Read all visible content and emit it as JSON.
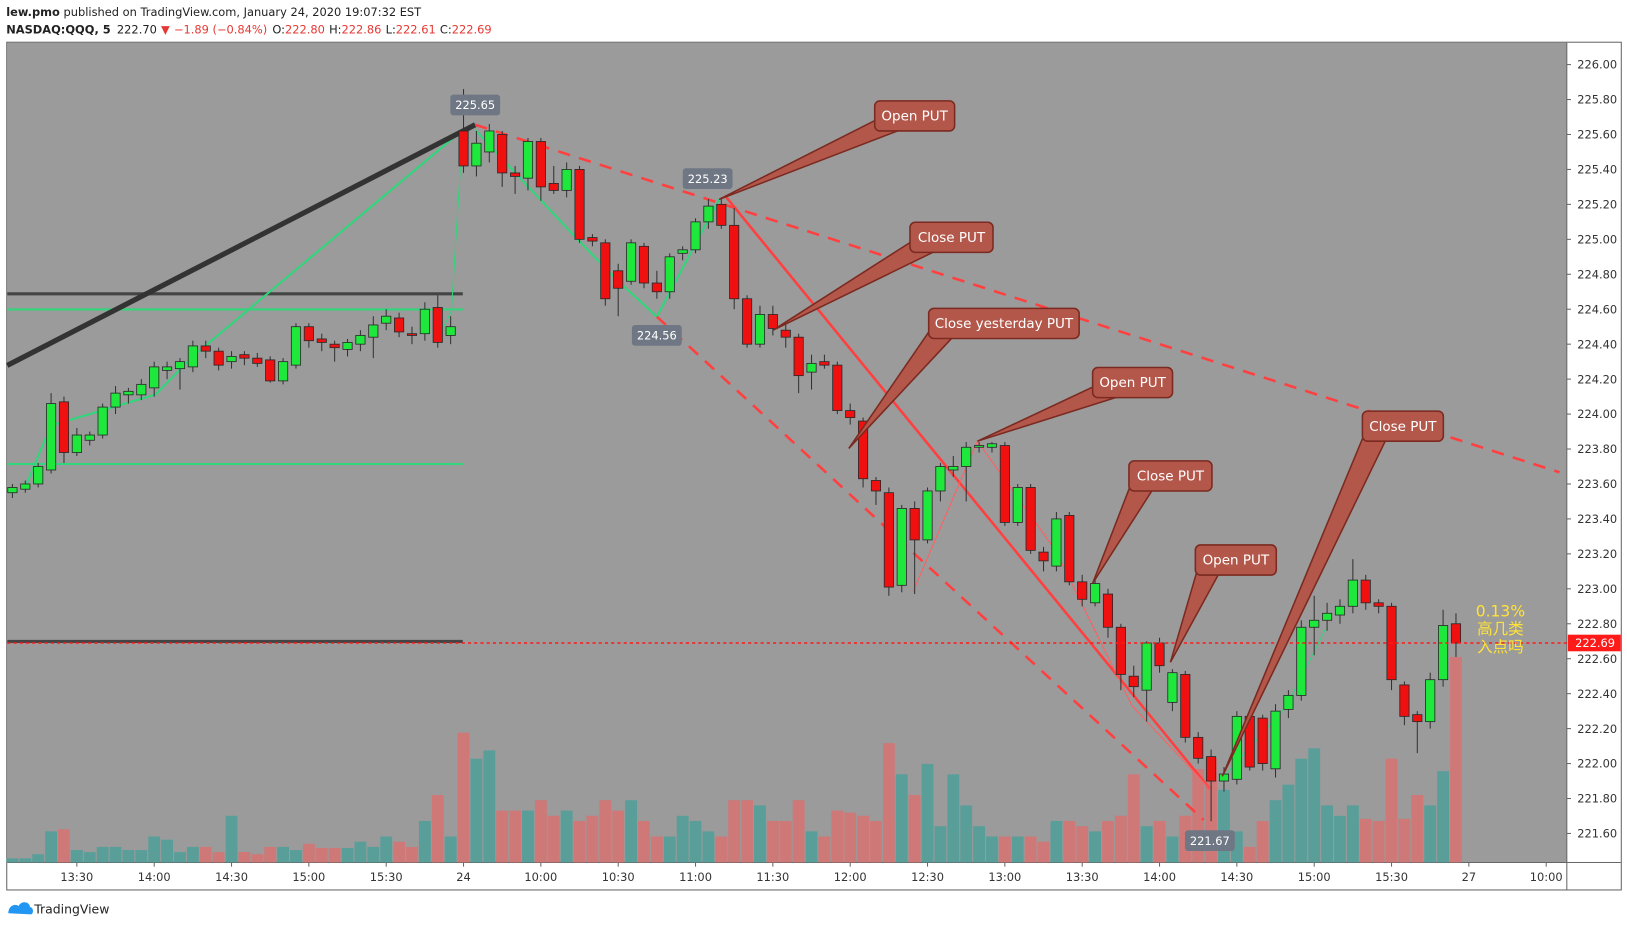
{
  "header": {
    "author": "lew.pmo",
    "published": "published on TradingView.com, January 24, 2020 19:07:32 EST",
    "symbol": "NASDAQ:QQQ, 5",
    "price": "222.70",
    "arrow": "▼",
    "change": "−1.89 (−0.84%)",
    "ohlc": [
      {
        "key": "O:",
        "value": "222.80"
      },
      {
        "key": "H:",
        "value": "222.86"
      },
      {
        "key": "L:",
        "value": "222.61"
      },
      {
        "key": "C:",
        "value": "222.69"
      }
    ]
  },
  "chart_data": {
    "type": "candlestick",
    "open": [
      223.55,
      223.57,
      223.6,
      223.68,
      224.07,
      223.78,
      223.85,
      223.88,
      224.04,
      224.11,
      224.11,
      224.15,
      224.25,
      224.26,
      224.27,
      224.39,
      224.36,
      224.3,
      224.34,
      224.32,
      224.31,
      224.19,
      224.28,
      224.5,
      224.43,
      224.4,
      224.37,
      224.4,
      224.44,
      224.52,
      224.55,
      224.46,
      224.46,
      224.61,
      224.45,
      225.62,
      225.42,
      225.5,
      225.6,
      225.38,
      225.35,
      225.56,
      225.32,
      225.28,
      225.4,
      225.01,
      224.98,
      224.82,
      224.76,
      224.96,
      224.75,
      224.7,
      224.92,
      224.94,
      225.1,
      225.2,
      225.08,
      224.66,
      224.4,
      224.57,
      224.48,
      224.44,
      224.24,
      224.3,
      224.28,
      224.02,
      223.96,
      223.62,
      223.55,
      223.02,
      223.46,
      223.28,
      223.56,
      223.68,
      223.7,
      223.81,
      223.81,
      223.82,
      223.38,
      223.58,
      223.21,
      223.13,
      223.42,
      223.04,
      222.92,
      222.97,
      222.78,
      222.5,
      222.42,
      222.69,
      222.35,
      222.51,
      222.15,
      222.04,
      221.9,
      221.91,
      222.27,
      222.26,
      221.97,
      222.31,
      222.39,
      222.78,
      222.82,
      222.85,
      222.9,
      223.05,
      222.92,
      222.9,
      222.45,
      222.28,
      222.24,
      222.48,
      222.8
    ],
    "high": [
      223.6,
      223.62,
      223.72,
      224.12,
      224.1,
      223.92,
      223.9,
      224.06,
      224.16,
      224.15,
      224.2,
      224.3,
      224.3,
      224.32,
      224.42,
      224.42,
      224.38,
      224.36,
      224.36,
      224.35,
      224.33,
      224.32,
      224.52,
      224.52,
      224.46,
      224.42,
      224.43,
      224.48,
      224.56,
      224.6,
      224.58,
      224.5,
      224.64,
      224.68,
      224.56,
      225.86,
      225.62,
      225.66,
      225.62,
      225.42,
      225.58,
      225.58,
      225.42,
      225.44,
      225.42,
      225.03,
      225.0,
      224.86,
      225.0,
      224.98,
      224.82,
      224.92,
      224.96,
      225.12,
      225.23,
      225.24,
      225.18,
      224.68,
      224.62,
      224.62,
      224.52,
      224.46,
      224.34,
      224.34,
      224.3,
      224.06,
      223.98,
      223.64,
      223.58,
      223.48,
      223.5,
      223.58,
      223.72,
      223.76,
      223.84,
      223.84,
      223.84,
      223.84,
      223.6,
      223.6,
      223.24,
      223.44,
      223.44,
      223.08,
      223.06,
      223.0,
      222.8,
      222.56,
      222.7,
      222.72,
      222.54,
      222.53,
      222.18,
      222.08,
      221.98,
      222.3,
      222.3,
      222.28,
      222.34,
      222.42,
      222.82,
      222.96,
      222.92,
      222.94,
      223.17,
      223.08,
      222.94,
      222.92,
      222.47,
      222.3,
      222.52,
      222.88,
      222.86
    ],
    "low": [
      223.52,
      223.55,
      223.58,
      223.66,
      223.72,
      223.76,
      223.82,
      223.86,
      224.0,
      224.06,
      224.08,
      224.1,
      224.2,
      224.14,
      224.24,
      224.32,
      224.25,
      224.26,
      224.28,
      224.27,
      224.18,
      224.17,
      224.26,
      224.38,
      224.36,
      224.3,
      224.33,
      224.36,
      224.32,
      224.48,
      224.44,
      224.4,
      224.42,
      224.38,
      224.4,
      225.38,
      225.36,
      225.44,
      225.3,
      225.26,
      225.28,
      225.22,
      225.26,
      225.24,
      224.98,
      224.96,
      224.62,
      224.56,
      224.74,
      224.72,
      224.66,
      224.66,
      224.88,
      224.92,
      225.06,
      225.06,
      224.6,
      224.38,
      224.38,
      224.45,
      224.38,
      224.12,
      224.14,
      224.26,
      224.0,
      223.94,
      223.58,
      223.48,
      222.96,
      222.98,
      222.97,
      223.26,
      223.5,
      223.64,
      223.5,
      223.78,
      223.78,
      223.36,
      223.36,
      223.2,
      223.1,
      223.1,
      223.02,
      222.9,
      222.9,
      222.72,
      222.42,
      222.38,
      222.24,
      222.52,
      222.3,
      222.12,
      222.0,
      221.67,
      221.84,
      221.88,
      221.96,
      221.96,
      221.92,
      222.26,
      222.36,
      222.62,
      222.76,
      222.8,
      222.86,
      222.88,
      222.86,
      222.42,
      222.22,
      222.06,
      222.2,
      222.44,
      222.61
    ],
    "close": [
      223.58,
      223.6,
      223.7,
      224.06,
      223.78,
      223.88,
      223.88,
      224.04,
      224.12,
      224.13,
      224.17,
      224.27,
      224.27,
      224.3,
      224.39,
      224.36,
      224.28,
      224.33,
      224.32,
      224.29,
      224.19,
      224.3,
      224.5,
      224.42,
      224.41,
      224.38,
      224.41,
      224.45,
      224.51,
      224.56,
      224.47,
      224.45,
      224.6,
      224.41,
      224.5,
      225.42,
      225.55,
      225.62,
      225.38,
      225.36,
      225.56,
      225.3,
      225.28,
      225.4,
      225.0,
      224.99,
      224.66,
      224.72,
      224.98,
      224.75,
      224.7,
      224.9,
      224.94,
      225.1,
      225.19,
      225.08,
      224.66,
      224.4,
      224.57,
      224.49,
      224.44,
      224.22,
      224.29,
      224.28,
      224.02,
      223.98,
      223.63,
      223.56,
      223.01,
      223.46,
      223.28,
      223.56,
      223.7,
      223.7,
      223.81,
      223.82,
      223.83,
      223.38,
      223.58,
      223.22,
      223.16,
      223.4,
      223.04,
      222.94,
      223.03,
      222.78,
      222.51,
      222.44,
      222.69,
      222.56,
      222.52,
      222.15,
      222.03,
      221.9,
      221.94,
      222.27,
      221.98,
      222.0,
      222.3,
      222.39,
      222.78,
      222.82,
      222.86,
      222.9,
      223.05,
      222.92,
      222.9,
      222.48,
      222.27,
      222.24,
      222.48,
      222.79,
      222.69
    ],
    "volume": [
      4,
      4,
      8,
      30,
      32,
      12,
      10,
      15,
      15,
      12,
      12,
      25,
      22,
      10,
      15,
      15,
      10,
      45,
      10,
      8,
      15,
      15,
      12,
      18,
      14,
      14,
      14,
      20,
      15,
      25,
      20,
      15,
      40,
      65,
      25,
      125,
      100,
      108,
      50,
      50,
      50,
      60,
      45,
      50,
      40,
      45,
      60,
      50,
      60,
      40,
      25,
      25,
      45,
      40,
      30,
      25,
      60,
      60,
      55,
      40,
      40,
      60,
      30,
      25,
      50,
      48,
      45,
      40,
      115,
      85,
      65,
      95,
      35,
      85,
      55,
      35,
      25,
      25,
      25,
      25,
      20,
      40,
      40,
      35,
      30,
      40,
      45,
      85,
      35,
      40,
      25,
      45,
      90,
      100,
      70,
      30,
      15,
      40,
      60,
      75,
      100,
      110,
      55,
      45,
      55,
      42,
      40,
      100,
      42,
      65,
      55,
      88,
      198
    ],
    "up_color": "#1ee83c",
    "down_color": "#f01010",
    "volume_up_color": "#4f9f9a",
    "volume_down_color": "#d77272",
    "last_price_color": "#ff1a1a",
    "xlim": [
      -0.4,
      120.6
    ],
    "ylim": [
      221.434,
      226.125
    ],
    "vlim": [
      0,
      790
    ],
    "xticks": [
      {
        "value": 5,
        "label": "13:30"
      },
      {
        "value": 11,
        "label": "14:00"
      },
      {
        "value": 17,
        "label": "14:30"
      },
      {
        "value": 23,
        "label": "15:00"
      },
      {
        "value": 29,
        "label": "15:30"
      },
      {
        "value": 35,
        "label": "24"
      },
      {
        "value": 41,
        "label": "10:00"
      },
      {
        "value": 47,
        "label": "10:30"
      },
      {
        "value": 53,
        "label": "11:00"
      },
      {
        "value": 59,
        "label": "11:30"
      },
      {
        "value": 65,
        "label": "12:00"
      },
      {
        "value": 71,
        "label": "12:30"
      },
      {
        "value": 77,
        "label": "13:00"
      },
      {
        "value": 83,
        "label": "13:30"
      },
      {
        "value": 89,
        "label": "14:00"
      },
      {
        "value": 95,
        "label": "14:30"
      },
      {
        "value": 101,
        "label": "15:00"
      },
      {
        "value": 107,
        "label": "15:30"
      },
      {
        "value": 113,
        "label": "27"
      },
      {
        "value": 119,
        "label": "10:00"
      }
    ],
    "yticks": [
      {
        "value": 221.6,
        "label": "221.60"
      },
      {
        "value": 221.8,
        "label": "221.80"
      },
      {
        "value": 222.0,
        "label": "222.00"
      },
      {
        "value": 222.2,
        "label": "222.20"
      },
      {
        "value": 222.4,
        "label": "222.40"
      },
      {
        "value": 222.6,
        "label": "222.60"
      },
      {
        "value": 222.8,
        "label": "222.80"
      },
      {
        "value": 223.0,
        "label": "223.00"
      },
      {
        "value": 223.2,
        "label": "223.20"
      },
      {
        "value": 223.4,
        "label": "223.40"
      },
      {
        "value": 223.6,
        "label": "223.60"
      },
      {
        "value": 223.8,
        "label": "223.80"
      },
      {
        "value": 224.0,
        "label": "224.00"
      },
      {
        "value": 224.2,
        "label": "224.20"
      },
      {
        "value": 224.4,
        "label": "224.40"
      },
      {
        "value": 224.6,
        "label": "224.60"
      },
      {
        "value": 224.8,
        "label": "224.80"
      },
      {
        "value": 225.0,
        "label": "225.00"
      },
      {
        "value": 225.2,
        "label": "225.20"
      },
      {
        "value": 225.4,
        "label": "225.40"
      },
      {
        "value": 225.6,
        "label": "225.60"
      },
      {
        "value": 225.8,
        "label": "225.80"
      },
      {
        "value": 226.0,
        "label": "226.00"
      }
    ],
    "price_labels": [
      "225.65",
      "225.23",
      "224.56",
      "221.67"
    ],
    "callouts": [
      "Open PUT",
      "Close PUT",
      "Close yesterday PUT",
      "Open PUT",
      "Close PUT",
      "Open PUT",
      "Close PUT"
    ],
    "notes": [
      "0.13%",
      "高几类",
      "入点吗"
    ]
  },
  "footer": "TradingView"
}
